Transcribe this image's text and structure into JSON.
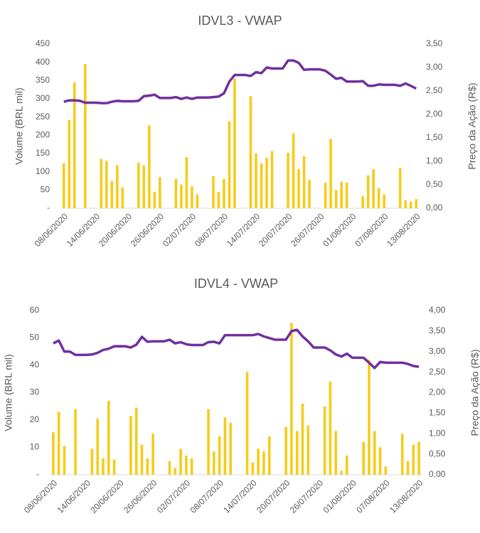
{
  "chart_data": [
    {
      "type": "combo",
      "title": "IDVL3 - VWAP",
      "y_label": "Volume (BRL mil)",
      "y2_label": "Preço da Ação  (R$)",
      "categories": [
        "08/06/2020",
        null,
        null,
        null,
        null,
        null,
        "14/06/2020",
        null,
        null,
        null,
        null,
        null,
        "20/06/2020",
        null,
        null,
        null,
        null,
        null,
        "26/06/2020",
        null,
        null,
        null,
        null,
        null,
        "02/07/2020",
        null,
        null,
        null,
        null,
        null,
        "08/07/2020",
        null,
        null,
        null,
        null,
        null,
        "14/07/2020",
        null,
        null,
        null,
        null,
        null,
        "20/07/2020",
        null,
        null,
        null,
        null,
        null,
        "26/07/2020",
        null,
        null,
        null,
        null,
        null,
        "01/08/2020",
        null,
        null,
        null,
        null,
        null,
        "07/08/2020",
        null,
        null,
        null,
        null,
        null,
        "13/08/2020"
      ],
      "series": [
        {
          "type": "bar",
          "color": "#f5cc1b",
          "values": [
            123,
            242,
            345,
            null,
            395,
            null,
            null,
            135,
            130,
            75,
            118,
            57,
            null,
            null,
            125,
            117,
            227,
            45,
            85,
            null,
            null,
            80,
            65,
            140,
            60,
            38,
            null,
            null,
            88,
            45,
            80,
            238,
            355,
            null,
            null,
            307,
            150,
            123,
            138,
            157,
            null,
            null,
            152,
            205,
            107,
            142,
            78,
            null,
            null,
            70,
            190,
            50,
            73,
            70,
            null,
            null,
            33,
            90,
            107,
            55,
            38,
            null,
            null,
            110,
            22,
            18,
            25
          ]
        },
        {
          "type": "line",
          "axis": "y2",
          "color": "#7030a0",
          "values": [
            2.27,
            2.3,
            2.3,
            2.29,
            2.25,
            2.25,
            2.25,
            2.24,
            2.24,
            2.27,
            2.29,
            2.28,
            2.28,
            2.28,
            2.29,
            2.39,
            2.4,
            2.42,
            2.35,
            2.35,
            2.35,
            2.37,
            2.33,
            2.36,
            2.33,
            2.36,
            2.36,
            2.36,
            2.37,
            2.38,
            2.45,
            2.7,
            2.84,
            2.84,
            2.84,
            2.82,
            2.9,
            2.88,
            3.0,
            2.98,
            2.98,
            2.98,
            3.15,
            3.15,
            3.1,
            2.95,
            2.96,
            2.96,
            2.96,
            2.93,
            2.85,
            2.76,
            2.78,
            2.7,
            2.7,
            2.7,
            2.71,
            2.61,
            2.61,
            2.64,
            2.63,
            2.63,
            2.63,
            2.61,
            2.66,
            2.61,
            2.55
          ]
        }
      ],
      "ylim": [
        0,
        450
      ],
      "yticks": [
        {
          "value": 0,
          "label": "-"
        },
        50,
        100,
        150,
        200,
        250,
        300,
        350,
        400,
        450
      ],
      "y2lim": [
        0,
        3.5
      ],
      "y2ticks": [
        {
          "value": 0,
          "label": "0,00"
        },
        {
          "value": 0.5,
          "label": "0,50"
        },
        {
          "value": 1,
          "label": "1,00"
        },
        {
          "value": 1.5,
          "label": "1,50"
        },
        {
          "value": 2,
          "label": "2,00"
        },
        {
          "value": 2.5,
          "label": "2,50"
        },
        {
          "value": 3,
          "label": "3,00"
        },
        {
          "value": 3.5,
          "label": "3,50"
        }
      ]
    },
    {
      "type": "combo",
      "title": "IDVL4 - VWAP",
      "y_label": "Volume (BRL mil)",
      "y2_label": "Preço da Ação  (R$)",
      "categories": [
        "08/06/2020",
        null,
        null,
        null,
        null,
        null,
        "14/06/2020",
        null,
        null,
        null,
        null,
        null,
        "20/06/2020",
        null,
        null,
        null,
        null,
        null,
        "26/06/2020",
        null,
        null,
        null,
        null,
        null,
        "02/07/2020",
        null,
        null,
        null,
        null,
        null,
        "08/07/2020",
        null,
        null,
        null,
        null,
        null,
        "14/07/2020",
        null,
        null,
        null,
        null,
        null,
        "20/07/2020",
        null,
        null,
        null,
        null,
        null,
        "26/07/2020",
        null,
        null,
        null,
        null,
        null,
        "01/08/2020",
        null,
        null,
        null,
        null,
        null,
        "07/08/2020",
        null,
        null,
        null,
        null,
        null,
        "13/08/2020"
      ],
      "series": [
        {
          "type": "bar",
          "color": "#f5cc1b",
          "values": [
            15.5,
            23,
            10.5,
            null,
            24,
            null,
            null,
            9.5,
            20.5,
            6,
            27,
            5.5,
            null,
            null,
            21.5,
            24.5,
            11,
            6,
            15,
            null,
            null,
            5,
            2.5,
            9.5,
            7,
            6,
            null,
            null,
            24,
            8.5,
            14,
            21,
            19,
            null,
            null,
            37.5,
            4.5,
            9.5,
            8.5,
            14,
            null,
            null,
            17.5,
            55.5,
            16,
            26,
            18,
            null,
            null,
            25,
            34,
            16,
            1.5,
            7,
            null,
            null,
            12,
            42,
            16,
            10,
            3,
            null,
            null,
            15,
            5,
            11,
            12
          ]
        },
        {
          "type": "line",
          "axis": "y2",
          "color": "#7030a0",
          "values": [
            3.2,
            3.27,
            3.0,
            3.0,
            2.92,
            2.92,
            2.92,
            2.93,
            2.97,
            3.04,
            3.07,
            3.13,
            3.13,
            3.13,
            3.1,
            3.17,
            3.36,
            3.24,
            3.25,
            3.25,
            3.25,
            3.29,
            3.2,
            3.23,
            3.18,
            3.16,
            3.16,
            3.16,
            3.23,
            3.24,
            3.2,
            3.4,
            3.4,
            3.4,
            3.4,
            3.4,
            3.4,
            3.43,
            3.37,
            3.33,
            3.29,
            3.29,
            3.29,
            3.5,
            3.53,
            3.37,
            3.25,
            3.1,
            3.1,
            3.1,
            3.03,
            2.93,
            2.88,
            2.95,
            2.85,
            2.85,
            2.85,
            2.73,
            2.6,
            2.75,
            2.73,
            2.73,
            2.73,
            2.73,
            2.7,
            2.65,
            2.63
          ]
        }
      ],
      "ylim": [
        0,
        60
      ],
      "yticks": [
        {
          "value": 0,
          "label": "-"
        },
        10,
        20,
        30,
        40,
        50,
        60
      ],
      "y2lim": [
        0,
        4
      ],
      "y2ticks": [
        {
          "value": 0,
          "label": "0,00"
        },
        {
          "value": 0.5,
          "label": "0,50"
        },
        {
          "value": 1,
          "label": "1,00"
        },
        {
          "value": 1.5,
          "label": "1,50"
        },
        {
          "value": 2,
          "label": "2,00"
        },
        {
          "value": 2.5,
          "label": "2,50"
        },
        {
          "value": 3,
          "label": "3,00"
        },
        {
          "value": 3.5,
          "label": "3,50"
        },
        {
          "value": 4,
          "label": "4,00"
        }
      ]
    }
  ]
}
